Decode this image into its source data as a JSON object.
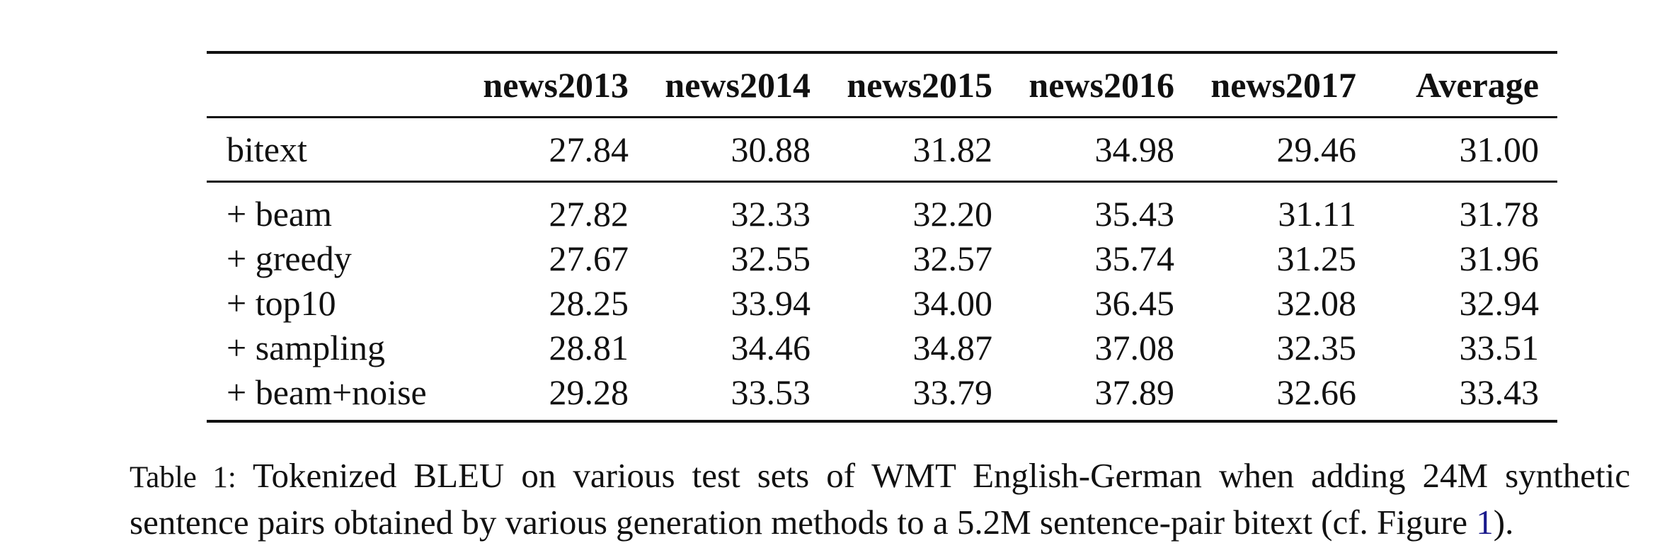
{
  "table": {
    "headers": [
      "",
      "news2013",
      "news2014",
      "news2015",
      "news2016",
      "news2017",
      "Average"
    ],
    "baseline": {
      "label": "bitext",
      "values": [
        "27.84",
        "30.88",
        "31.82",
        "34.98",
        "29.46",
        "31.00"
      ]
    },
    "rows": [
      {
        "label": "+ beam",
        "values": [
          "27.82",
          "32.33",
          "32.20",
          "35.43",
          "31.11",
          "31.78"
        ]
      },
      {
        "label": "+ greedy",
        "values": [
          "27.67",
          "32.55",
          "32.57",
          "35.74",
          "31.25",
          "31.96"
        ]
      },
      {
        "label": "+ top10",
        "values": [
          "28.25",
          "33.94",
          "34.00",
          "36.45",
          "32.08",
          "32.94"
        ]
      },
      {
        "label": "+ sampling",
        "values": [
          "28.81",
          "34.46",
          "34.87",
          "37.08",
          "32.35",
          "33.51"
        ]
      },
      {
        "label": "+ beam+noise",
        "values": [
          "29.28",
          "33.53",
          "33.79",
          "37.89",
          "32.66",
          "33.43"
        ]
      }
    ]
  },
  "caption": {
    "tag": "Table 1:",
    "text_before_ref": "Tokenized BLEU on various test sets of WMT English-German when adding 24M synthetic sentence pairs obtained by various generation methods to a 5.2M sentence-pair bitext (cf. Figure ",
    "ref": "1",
    "text_after_ref": ")."
  }
}
